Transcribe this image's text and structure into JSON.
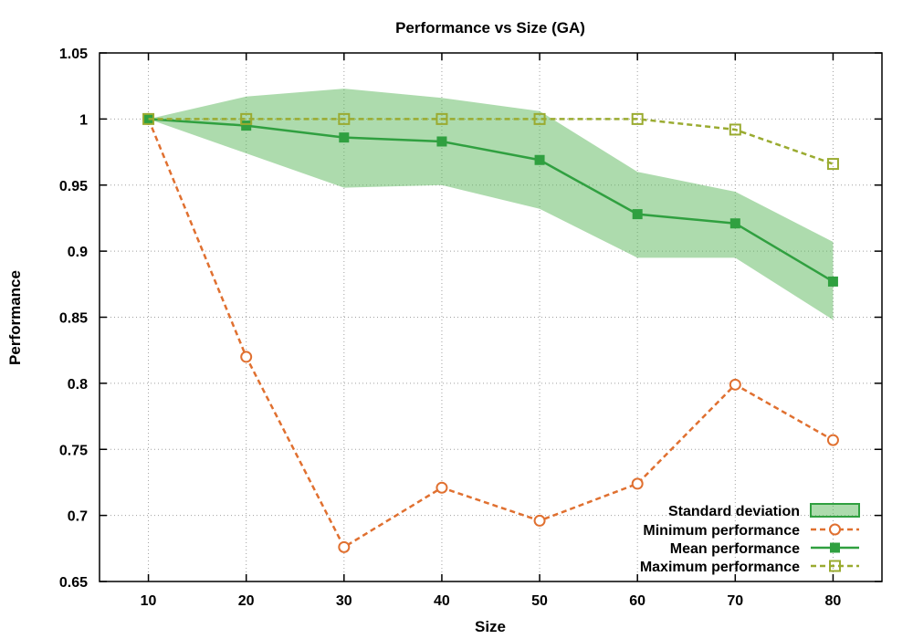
{
  "chart_data": {
    "type": "line",
    "title": "Performance vs Size (GA)",
    "xlabel": "Size",
    "ylabel": "Performance",
    "x": [
      10,
      20,
      30,
      40,
      50,
      60,
      70,
      80
    ],
    "xlim": [
      5,
      85
    ],
    "ylim": [
      0.65,
      1.05
    ],
    "xticks": [
      "10",
      "20",
      "30",
      "40",
      "50",
      "60",
      "70",
      "80"
    ],
    "yticks": [
      "0.65",
      "0.7",
      "0.75",
      "0.8",
      "0.85",
      "0.9",
      "0.95",
      "1",
      "1.05"
    ],
    "grid": true,
    "legend_position": "bottom-right",
    "band": {
      "name": "Standard deviation",
      "color": "#5cb85c",
      "upper": [
        1.0,
        1.017,
        1.023,
        1.016,
        1.006,
        0.96,
        0.945,
        0.907
      ],
      "lower": [
        1.0,
        0.974,
        0.948,
        0.95,
        0.932,
        0.895,
        0.895,
        0.848
      ]
    },
    "series": [
      {
        "name": "Minimum performance",
        "color": "#e07030",
        "style": "dashed",
        "marker": "open-circle",
        "values": [
          1.0,
          0.82,
          0.676,
          0.721,
          0.696,
          0.724,
          0.799,
          0.757
        ]
      },
      {
        "name": "Mean performance",
        "color": "#30a040",
        "style": "solid",
        "marker": "filled-square",
        "values": [
          1.0,
          0.995,
          0.986,
          0.983,
          0.969,
          0.928,
          0.921,
          0.877
        ]
      },
      {
        "name": "Maximum performance",
        "color": "#9aab30",
        "style": "dashed",
        "marker": "open-square",
        "values": [
          1.0,
          1.0,
          1.0,
          1.0,
          1.0,
          1.0,
          0.992,
          0.966
        ]
      }
    ]
  }
}
